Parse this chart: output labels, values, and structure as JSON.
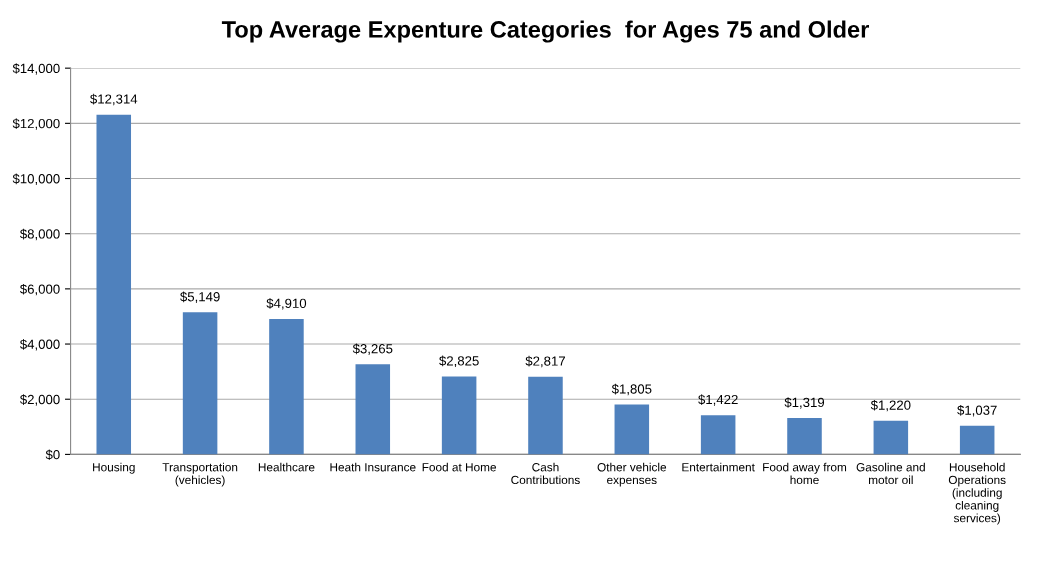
{
  "chart_data": {
    "type": "bar",
    "title": "Top Average Expenture Categories  for Ages 75 and Older",
    "categories": [
      "Housing",
      "Transportation\n(vehicles)",
      "Healthcare",
      "Heath Insurance",
      "Food at Home",
      "Cash\nContributions",
      "Other vehicle\nexpenses",
      "Entertainment",
      "Food away from\nhome",
      "Gasoline and\nmotor oil",
      "Household\nOperations\n(including\ncleaning\nservices)"
    ],
    "values": [
      12314,
      5149,
      4910,
      3265,
      2825,
      2817,
      1805,
      1422,
      1319,
      1220,
      1037
    ],
    "value_labels": [
      "$12,314",
      "$5,149",
      "$4,910",
      "$3,265",
      "$2,825",
      "$2,817",
      "$1,805",
      "$1,422",
      "$1,319",
      "$1,220",
      "$1,037"
    ],
    "color": "#4f81bd",
    "ylim": [
      0,
      14000
    ],
    "yticks": [
      {
        "value": 0,
        "label": "$0"
      },
      {
        "value": 2000,
        "label": "$2,000"
      },
      {
        "value": 4000,
        "label": "$4,000"
      },
      {
        "value": 6000,
        "label": "$6,000"
      },
      {
        "value": 8000,
        "label": "$8,000"
      },
      {
        "value": 10000,
        "label": "$10,000"
      },
      {
        "value": 12000,
        "label": "$12,000"
      },
      {
        "value": 14000,
        "label": "$14,000"
      }
    ],
    "grid": "y"
  }
}
